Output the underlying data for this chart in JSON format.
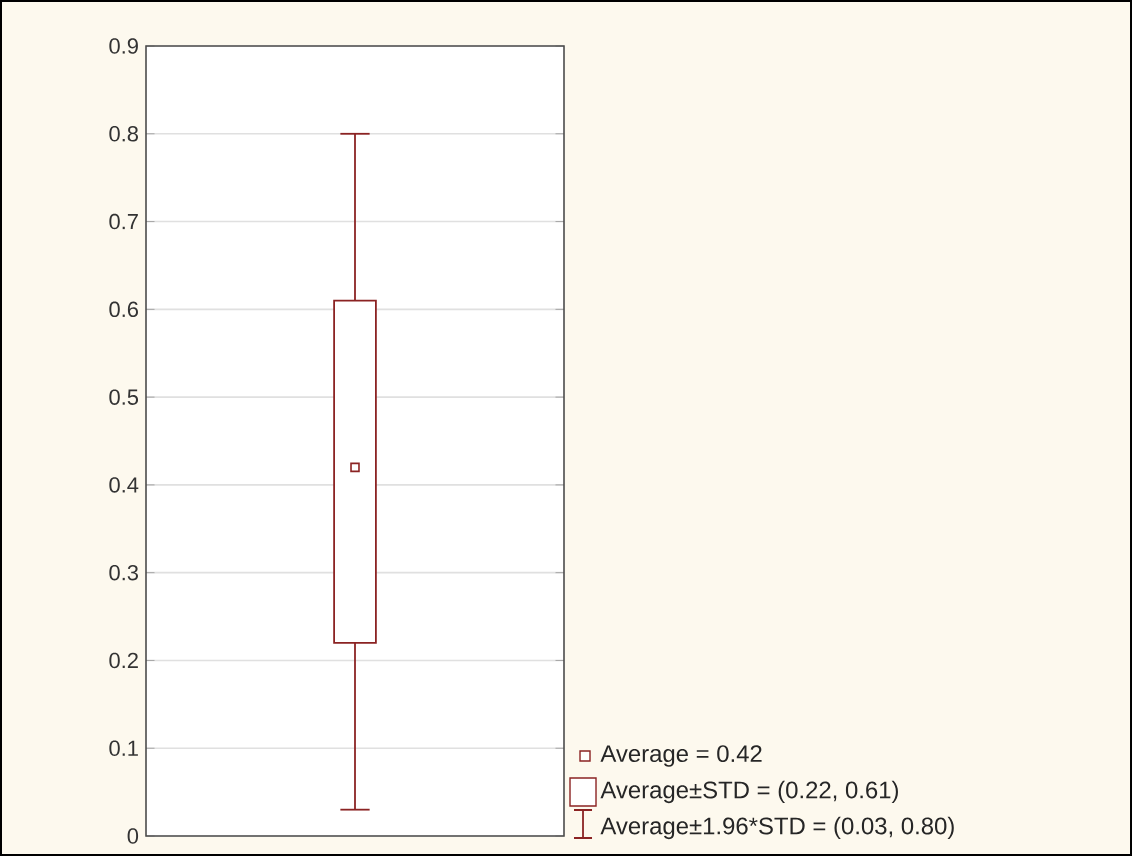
{
  "chart_data": {
    "type": "box",
    "categories": [
      null
    ],
    "boxes": [
      {
        "low": 0.03,
        "q1": 0.22,
        "median": 0.42,
        "q3": 0.61,
        "high": 0.8
      }
    ],
    "color": "#8b2323",
    "ylim": [
      0,
      0.9
    ],
    "yticks": [
      0,
      0.1,
      0.2,
      0.3,
      0.4,
      0.5,
      0.6,
      0.7,
      0.8,
      0.9
    ],
    "grid": "y",
    "tick_labels": "y",
    "annotations": [
      "Average = 0.42",
      "Average±STD = (0.22, 0.61)",
      "Average±1.96*STD = (0.03, 0.80)"
    ]
  }
}
